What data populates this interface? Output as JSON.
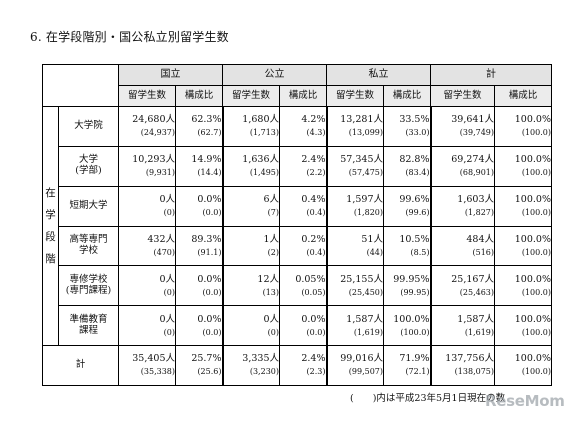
{
  "title": "6. 在学段階別・国公私立別留学生数",
  "header": {
    "groups": [
      "国立",
      "公立",
      "私立",
      "計"
    ],
    "sub_students": "留学生数",
    "sub_ratio": "構成比"
  },
  "side_label": "在学段階",
  "rows": [
    {
      "label": "大学院",
      "cells": [
        {
          "v": "24,680人",
          "p": "(24,937)"
        },
        {
          "v": "62.3%",
          "p": "(62.7)"
        },
        {
          "v": "1,680人",
          "p": "(1,713)"
        },
        {
          "v": "4.2%",
          "p": "(4.3)"
        },
        {
          "v": "13,281人",
          "p": "(13,099)"
        },
        {
          "v": "33.5%",
          "p": "(33.0)"
        },
        {
          "v": "39,641人",
          "p": "(39,749)"
        },
        {
          "v": "100.0%",
          "p": "(100.0)"
        }
      ]
    },
    {
      "label": "大学\n(学部)",
      "cells": [
        {
          "v": "10,293人",
          "p": "(9,931)"
        },
        {
          "v": "14.9%",
          "p": "(14.4)"
        },
        {
          "v": "1,636人",
          "p": "(1,495)"
        },
        {
          "v": "2.4%",
          "p": "(2.2)"
        },
        {
          "v": "57,345人",
          "p": "(57,475)"
        },
        {
          "v": "82.8%",
          "p": "(83.4)"
        },
        {
          "v": "69,274人",
          "p": "(68,901)"
        },
        {
          "v": "100.0%",
          "p": "(100.0)"
        }
      ]
    },
    {
      "label": "短期大学",
      "cells": [
        {
          "v": "0人",
          "p": "(0)"
        },
        {
          "v": "0.0%",
          "p": "(0.0)"
        },
        {
          "v": "6人",
          "p": "(7)"
        },
        {
          "v": "0.4%",
          "p": "(0.4)"
        },
        {
          "v": "1,597人",
          "p": "(1,820)"
        },
        {
          "v": "99.6%",
          "p": "(99.6)"
        },
        {
          "v": "1,603人",
          "p": "(1,827)"
        },
        {
          "v": "100.0%",
          "p": "(100.0)"
        }
      ]
    },
    {
      "label": "高等専門\n学校",
      "cells": [
        {
          "v": "432人",
          "p": "(470)"
        },
        {
          "v": "89.3%",
          "p": "(91.1)"
        },
        {
          "v": "1人",
          "p": "(2)"
        },
        {
          "v": "0.2%",
          "p": "(0.4)"
        },
        {
          "v": "51人",
          "p": "(44)"
        },
        {
          "v": "10.5%",
          "p": "(8.5)"
        },
        {
          "v": "484人",
          "p": "(516)"
        },
        {
          "v": "100.0%",
          "p": "(100.0)"
        }
      ]
    },
    {
      "label": "専修学校\n(専門課程)",
      "cells": [
        {
          "v": "0人",
          "p": "(0)"
        },
        {
          "v": "0.0%",
          "p": "(0.0)"
        },
        {
          "v": "12人",
          "p": "(13)"
        },
        {
          "v": "0.05%",
          "p": "(0.05)"
        },
        {
          "v": "25,155人",
          "p": "(25,450)"
        },
        {
          "v": "99.95%",
          "p": "(99.95)"
        },
        {
          "v": "25,167人",
          "p": "(25,463)"
        },
        {
          "v": "100.0%",
          "p": "(100.0)"
        }
      ]
    },
    {
      "label": "準備教育\n課程",
      "cells": [
        {
          "v": "0人",
          "p": "(0)"
        },
        {
          "v": "0.0%",
          "p": "(0.0)"
        },
        {
          "v": "0人",
          "p": "(0)"
        },
        {
          "v": "0.0%",
          "p": "(0.0)"
        },
        {
          "v": "1,587人",
          "p": "(1,619)"
        },
        {
          "v": "100.0%",
          "p": "(100.0)"
        },
        {
          "v": "1,587人",
          "p": "(1,619)"
        },
        {
          "v": "100.0%",
          "p": "(100.0)"
        }
      ]
    }
  ],
  "total": {
    "label": "計",
    "cells": [
      {
        "v": "35,405人",
        "p": "(35,338)"
      },
      {
        "v": "25.7%",
        "p": "(25.6)"
      },
      {
        "v": "3,335人",
        "p": "(3,230)"
      },
      {
        "v": "2.4%",
        "p": "(2.3)"
      },
      {
        "v": "99,016人",
        "p": "(99,507)"
      },
      {
        "v": "71.9%",
        "p": "(72.1)"
      },
      {
        "v": "137,756人",
        "p": "(138,075)"
      },
      {
        "v": "100.0%",
        "p": "(100.0)"
      }
    ]
  },
  "note": "(　　)内は平成23年5月1日現在の数",
  "logo": "ReseMom"
}
